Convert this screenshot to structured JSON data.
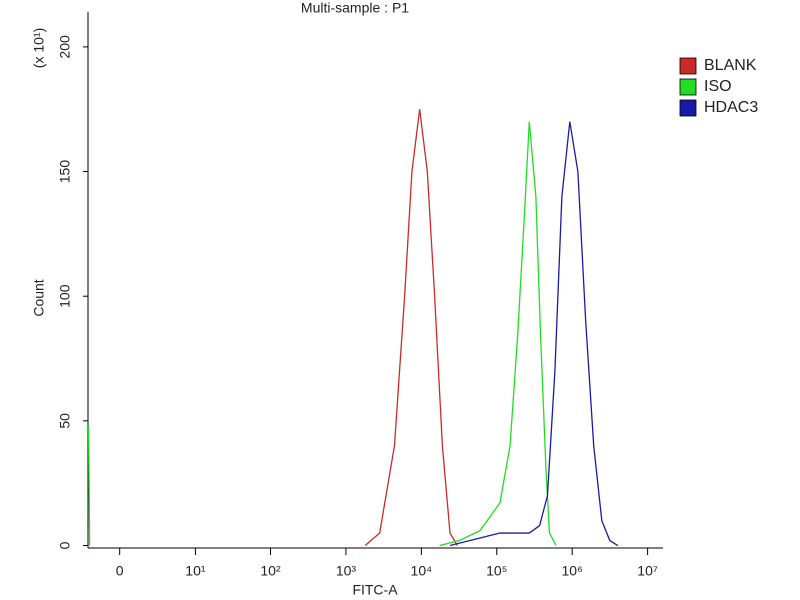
{
  "chart_data": {
    "type": "line",
    "title": "Multi-sample : P1",
    "x_label": "FITC-A",
    "y_label": "Count",
    "y_multiplier": "(x 10¹)",
    "xscale": "asinh",
    "xlim": [
      -2.25,
      16000000
    ],
    "xticks": [
      0,
      {
        "value": 10,
        "label": "10¹"
      },
      {
        "value": 100,
        "label": "10²"
      },
      {
        "value": 1000,
        "label": "10³"
      },
      {
        "value": 10000,
        "label": "10⁴"
      },
      {
        "value": 100000,
        "label": "10⁵"
      },
      {
        "value": 1000000,
        "label": "10⁶"
      },
      {
        "value": 10000000,
        "label": "10⁷"
      }
    ],
    "ylim": [
      -1,
      214
    ],
    "yticks": [
      0,
      50,
      100,
      150,
      200
    ],
    "grid": false,
    "legend": "right",
    "series": [
      {
        "name": "BLANK",
        "color": "#cc2a2a",
        "x": [
          1800,
          2800,
          4400,
          6000,
          7500,
          9500,
          12000,
          15000,
          19000,
          24000,
          30000
        ],
        "values": [
          0,
          5,
          40,
          100,
          150,
          175,
          150,
          100,
          40,
          5,
          0
        ]
      },
      {
        "name": "ISO",
        "color": "#22dd22",
        "x": [
          -2.2,
          -2.1,
          null,
          17500,
          32000,
          60000,
          110000,
          150000,
          190000,
          230000,
          270000,
          330000,
          380000,
          450000,
          500000,
          610000
        ],
        "values": [
          48,
          0,
          null,
          0,
          2,
          6,
          17,
          40,
          85,
          130,
          170,
          140,
          85,
          30,
          5,
          0
        ]
      },
      {
        "name": "HDAC3",
        "color": "#1a1aa8",
        "x": [
          24000,
          60000,
          110000,
          270000,
          370000,
          470000,
          590000,
          730000,
          930000,
          1190000,
          1510000,
          1930000,
          2470000,
          3150000,
          4030000
        ],
        "values": [
          0,
          3,
          5,
          5,
          8,
          20,
          70,
          140,
          170,
          150,
          90,
          40,
          10,
          2,
          0
        ]
      }
    ]
  }
}
